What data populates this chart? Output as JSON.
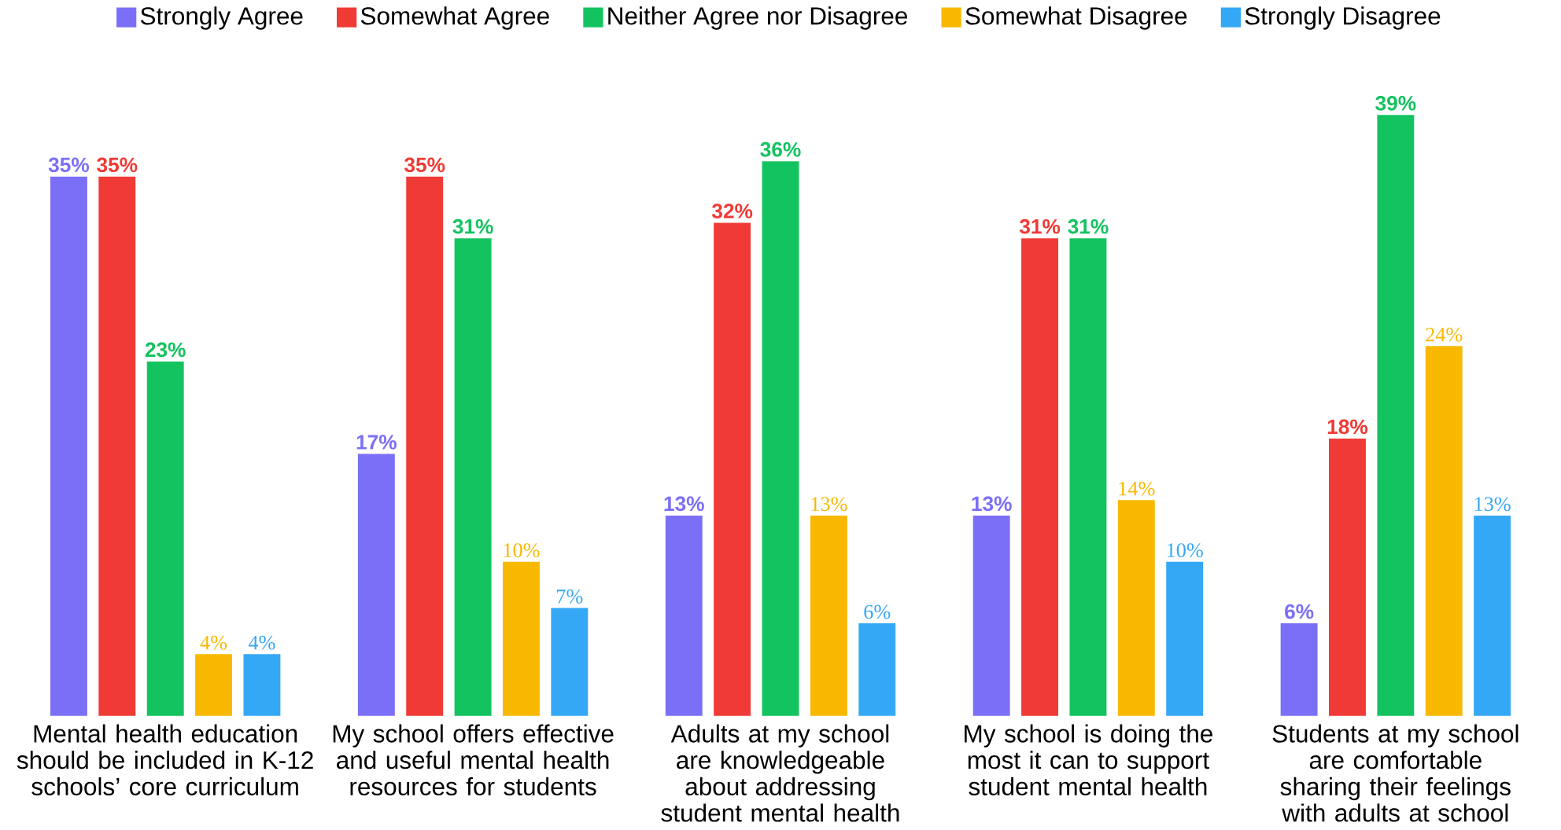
{
  "chart_data": {
    "type": "bar",
    "legend": "top",
    "categories": [
      "Mental health education should be included in K-12 schools’ core curriculum",
      "My school offers effective and useful mental health resources for students",
      "Adults at my school are knowledgeable about addressing student mental health",
      "My school is doing the most it can to support student mental health",
      "Students at my school are comfortable sharing their feelings with adults at school"
    ],
    "series": [
      {
        "name": "Strongly Agree",
        "color": "#7b6ff7",
        "values": [
          35,
          17,
          13,
          13,
          6
        ],
        "value_labels": [
          "35%",
          "17%",
          "13%",
          "13%",
          "6%"
        ]
      },
      {
        "name": "Somewhat Agree",
        "color": "#f03a35",
        "values": [
          35,
          35,
          32,
          31,
          18
        ],
        "value_labels": [
          "35%",
          "35%",
          "32%",
          "31%",
          "18%"
        ]
      },
      {
        "name": "Neither Agree nor Disagree",
        "color": "#13c35f",
        "values": [
          23,
          31,
          36,
          31,
          39
        ],
        "value_labels": [
          "23%",
          "31%",
          "36%",
          "31%",
          "39%"
        ]
      },
      {
        "name": "Somewhat Disagree",
        "color": "#f9b800",
        "values": [
          4,
          10,
          13,
          14,
          24
        ],
        "value_labels": [
          "4%",
          "10%",
          "13%",
          "14%",
          "24%"
        ]
      },
      {
        "name": "Strongly Disagree",
        "color": "#35a8f5",
        "values": [
          4,
          7,
          6,
          10,
          13
        ],
        "value_labels": [
          "4%",
          "7%",
          "6%",
          "10%",
          "13%"
        ]
      }
    ]
  }
}
